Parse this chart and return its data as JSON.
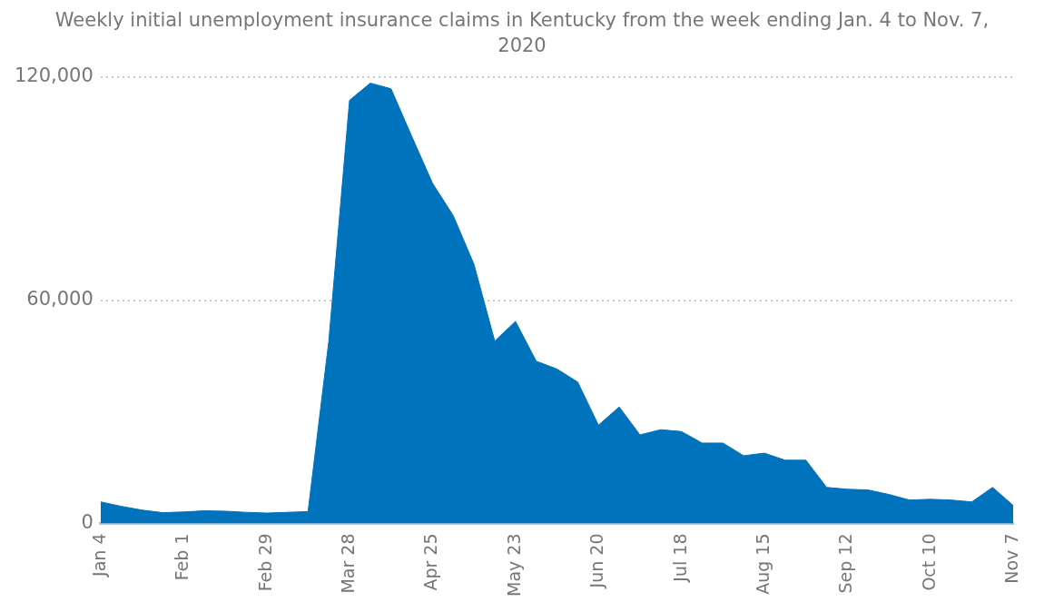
{
  "chart_data": {
    "type": "area",
    "title": "Weekly initial unemployment insurance claims in Kentucky from the week ending Jan. 4 to Nov. 7, 2020",
    "categories": [
      "Jan 4",
      null,
      null,
      null,
      "Feb 1",
      null,
      null,
      null,
      "Feb 29",
      null,
      null,
      null,
      "Mar 28",
      null,
      null,
      null,
      "Apr 25",
      null,
      null,
      null,
      "May 23",
      null,
      null,
      null,
      "Jun 20",
      null,
      null,
      null,
      "Jul 18",
      null,
      null,
      null,
      "Aug 15",
      null,
      null,
      null,
      "Sep 12",
      null,
      null,
      null,
      "Oct 10",
      null,
      null,
      null,
      "Nov 7"
    ],
    "series": [
      {
        "color": "#0073bd",
        "values": [
          5800,
          4600,
          3600,
          2900,
          3100,
          3400,
          3300,
          3000,
          2800,
          3000,
          3200,
          49000,
          113700,
          118300,
          116800,
          104000,
          91400,
          82700,
          69600,
          49000,
          54300,
          43600,
          41500,
          38000,
          26400,
          31300,
          23800,
          25200,
          24700,
          21600,
          21600,
          18200,
          18900,
          17000,
          17000,
          9700,
          9200,
          9000,
          7800,
          6300,
          6500,
          6300,
          5800,
          9700,
          4800
        ]
      }
    ],
    "ylim": [
      0,
      120000
    ],
    "yticks": [
      0,
      {
        "value": 60000,
        "label": "60,000"
      },
      {
        "value": 120000,
        "label": "120,000"
      }
    ],
    "grid": "y"
  }
}
